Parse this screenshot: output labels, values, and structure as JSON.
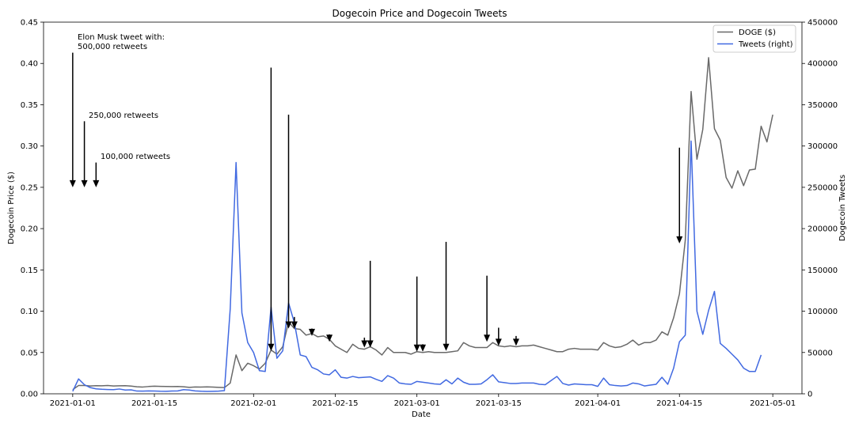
{
  "chart_data": {
    "type": "line",
    "title": "Dogecoin Price and Dogecoin Tweets",
    "xlabel": "Date",
    "ylabel_left": "Dogecoin Price ($)",
    "ylabel_right": "Dogecoin Tweets",
    "xlim": [
      "2020-12-27",
      "2021-05-06"
    ],
    "ylim_left": [
      0,
      0.45
    ],
    "ylim_right": [
      0,
      450000
    ],
    "x_ticks": [
      "2021-01-01",
      "2021-01-15",
      "2021-02-01",
      "2021-02-15",
      "2021-03-01",
      "2021-03-15",
      "2021-04-01",
      "2021-04-15",
      "2021-05-01"
    ],
    "y_ticks_left": [
      "0.00",
      "0.05",
      "0.10",
      "0.15",
      "0.20",
      "0.25",
      "0.30",
      "0.35",
      "0.40",
      "0.45"
    ],
    "y_ticks_right": [
      "0",
      "50000",
      "100000",
      "150000",
      "200000",
      "250000",
      "300000",
      "350000",
      "400000",
      "450000"
    ],
    "legend_position": "top-right",
    "grid": false,
    "series": [
      {
        "name": "DOGE ($)",
        "axis": "left",
        "color": "#696969",
        "points": [
          [
            "2021-01-01",
            0.005
          ],
          [
            "2021-01-02",
            0.01
          ],
          [
            "2021-01-03",
            0.01
          ],
          [
            "2021-01-04",
            0.0095
          ],
          [
            "2021-01-05",
            0.0098
          ],
          [
            "2021-01-06",
            0.0097
          ],
          [
            "2021-01-07",
            0.01
          ],
          [
            "2021-01-08",
            0.0095
          ],
          [
            "2021-01-09",
            0.0097
          ],
          [
            "2021-01-10",
            0.0098
          ],
          [
            "2021-01-11",
            0.0093
          ],
          [
            "2021-01-12",
            0.0085
          ],
          [
            "2021-01-13",
            0.0082
          ],
          [
            "2021-01-14",
            0.0088
          ],
          [
            "2021-01-15",
            0.0092
          ],
          [
            "2021-01-16",
            0.009
          ],
          [
            "2021-01-17",
            0.0088
          ],
          [
            "2021-01-18",
            0.0087
          ],
          [
            "2021-01-19",
            0.0088
          ],
          [
            "2021-01-20",
            0.0085
          ],
          [
            "2021-01-21",
            0.0078
          ],
          [
            "2021-01-22",
            0.0083
          ],
          [
            "2021-01-23",
            0.0082
          ],
          [
            "2021-01-24",
            0.0084
          ],
          [
            "2021-01-25",
            0.0082
          ],
          [
            "2021-01-26",
            0.0078
          ],
          [
            "2021-01-27",
            0.0075
          ],
          [
            "2021-01-28",
            0.013
          ],
          [
            "2021-01-29",
            0.047
          ],
          [
            "2021-01-30",
            0.028
          ],
          [
            "2021-01-31",
            0.037
          ],
          [
            "2021-02-01",
            0.034
          ],
          [
            "2021-02-02",
            0.03
          ],
          [
            "2021-02-03",
            0.037
          ],
          [
            "2021-02-04",
            0.053
          ],
          [
            "2021-02-05",
            0.048
          ],
          [
            "2021-02-06",
            0.057
          ],
          [
            "2021-02-07",
            0.087
          ],
          [
            "2021-02-08",
            0.079
          ],
          [
            "2021-02-09",
            0.078
          ],
          [
            "2021-02-10",
            0.071
          ],
          [
            "2021-02-11",
            0.073
          ],
          [
            "2021-02-12",
            0.069
          ],
          [
            "2021-02-13",
            0.07
          ],
          [
            "2021-02-14",
            0.066
          ],
          [
            "2021-02-15",
            0.058
          ],
          [
            "2021-02-16",
            0.054
          ],
          [
            "2021-02-17",
            0.05
          ],
          [
            "2021-02-18",
            0.06
          ],
          [
            "2021-02-19",
            0.055
          ],
          [
            "2021-02-20",
            0.054
          ],
          [
            "2021-02-21",
            0.057
          ],
          [
            "2021-02-22",
            0.053
          ],
          [
            "2021-02-23",
            0.047
          ],
          [
            "2021-02-24",
            0.056
          ],
          [
            "2021-02-25",
            0.05
          ],
          [
            "2021-02-26",
            0.05
          ],
          [
            "2021-02-27",
            0.05
          ],
          [
            "2021-02-28",
            0.048
          ],
          [
            "2021-03-01",
            0.051
          ],
          [
            "2021-03-02",
            0.05
          ],
          [
            "2021-03-03",
            0.051
          ],
          [
            "2021-03-04",
            0.05
          ],
          [
            "2021-03-05",
            0.05
          ],
          [
            "2021-03-06",
            0.05
          ],
          [
            "2021-03-07",
            0.051
          ],
          [
            "2021-03-08",
            0.052
          ],
          [
            "2021-03-09",
            0.062
          ],
          [
            "2021-03-10",
            0.058
          ],
          [
            "2021-03-11",
            0.056
          ],
          [
            "2021-03-12",
            0.056
          ],
          [
            "2021-03-13",
            0.056
          ],
          [
            "2021-03-14",
            0.062
          ],
          [
            "2021-03-15",
            0.058
          ],
          [
            "2021-03-16",
            0.057
          ],
          [
            "2021-03-17",
            0.058
          ],
          [
            "2021-03-18",
            0.057
          ],
          [
            "2021-03-19",
            0.058
          ],
          [
            "2021-03-20",
            0.058
          ],
          [
            "2021-03-21",
            0.059
          ],
          [
            "2021-03-22",
            0.057
          ],
          [
            "2021-03-23",
            0.055
          ],
          [
            "2021-03-24",
            0.053
          ],
          [
            "2021-03-25",
            0.051
          ],
          [
            "2021-03-26",
            0.051
          ],
          [
            "2021-03-27",
            0.054
          ],
          [
            "2021-03-28",
            0.055
          ],
          [
            "2021-03-29",
            0.054
          ],
          [
            "2021-03-30",
            0.054
          ],
          [
            "2021-03-31",
            0.054
          ],
          [
            "2021-04-01",
            0.053
          ],
          [
            "2021-04-02",
            0.062
          ],
          [
            "2021-04-03",
            0.058
          ],
          [
            "2021-04-04",
            0.056
          ],
          [
            "2021-04-05",
            0.057
          ],
          [
            "2021-04-06",
            0.06
          ],
          [
            "2021-04-07",
            0.065
          ],
          [
            "2021-04-08",
            0.059
          ],
          [
            "2021-04-09",
            0.062
          ],
          [
            "2021-04-10",
            0.062
          ],
          [
            "2021-04-11",
            0.065
          ],
          [
            "2021-04-12",
            0.075
          ],
          [
            "2021-04-13",
            0.071
          ],
          [
            "2021-04-14",
            0.092
          ],
          [
            "2021-04-15",
            0.121
          ],
          [
            "2021-04-16",
            0.186
          ],
          [
            "2021-04-17",
            0.366
          ],
          [
            "2021-04-18",
            0.284
          ],
          [
            "2021-04-19",
            0.32
          ],
          [
            "2021-04-20",
            0.407
          ],
          [
            "2021-04-21",
            0.321
          ],
          [
            "2021-04-22",
            0.307
          ],
          [
            "2021-04-23",
            0.262
          ],
          [
            "2021-04-24",
            0.249
          ],
          [
            "2021-04-25",
            0.27
          ],
          [
            "2021-04-26",
            0.252
          ],
          [
            "2021-04-27",
            0.271
          ],
          [
            "2021-04-28",
            0.272
          ],
          [
            "2021-04-29",
            0.324
          ],
          [
            "2021-04-30",
            0.305
          ],
          [
            "2021-05-01",
            0.338
          ]
        ]
      },
      {
        "name": "Tweets (right)",
        "axis": "right",
        "color": "#4169e1",
        "points": [
          [
            "2021-01-01",
            3000
          ],
          [
            "2021-01-02",
            18000
          ],
          [
            "2021-01-03",
            11000
          ],
          [
            "2021-01-04",
            7500
          ],
          [
            "2021-01-05",
            6000
          ],
          [
            "2021-01-06",
            5500
          ],
          [
            "2021-01-07",
            5200
          ],
          [
            "2021-01-08",
            5000
          ],
          [
            "2021-01-09",
            5800
          ],
          [
            "2021-01-10",
            4500
          ],
          [
            "2021-01-11",
            4800
          ],
          [
            "2021-01-12",
            3300
          ],
          [
            "2021-01-13",
            3200
          ],
          [
            "2021-01-14",
            3500
          ],
          [
            "2021-01-15",
            3400
          ],
          [
            "2021-01-16",
            3100
          ],
          [
            "2021-01-17",
            3000
          ],
          [
            "2021-01-18",
            3300
          ],
          [
            "2021-01-19",
            3500
          ],
          [
            "2021-01-20",
            5000
          ],
          [
            "2021-01-21",
            4600
          ],
          [
            "2021-01-22",
            3500
          ],
          [
            "2021-01-23",
            3100
          ],
          [
            "2021-01-24",
            2900
          ],
          [
            "2021-01-25",
            3000
          ],
          [
            "2021-01-26",
            3200
          ],
          [
            "2021-01-27",
            3800
          ],
          [
            "2021-01-28",
            103000
          ],
          [
            "2021-01-29",
            280000
          ],
          [
            "2021-01-30",
            98000
          ],
          [
            "2021-01-31",
            62000
          ],
          [
            "2021-02-01",
            50000
          ],
          [
            "2021-02-02",
            28000
          ],
          [
            "2021-02-03",
            27000
          ],
          [
            "2021-02-04",
            105000
          ],
          [
            "2021-02-05",
            43000
          ],
          [
            "2021-02-06",
            52000
          ],
          [
            "2021-02-07",
            110000
          ],
          [
            "2021-02-08",
            86000
          ],
          [
            "2021-02-09",
            47000
          ],
          [
            "2021-02-10",
            45000
          ],
          [
            "2021-02-11",
            32000
          ],
          [
            "2021-02-12",
            29000
          ],
          [
            "2021-02-13",
            24000
          ],
          [
            "2021-02-14",
            23000
          ],
          [
            "2021-02-15",
            29000
          ],
          [
            "2021-02-16",
            20000
          ],
          [
            "2021-02-17",
            19000
          ],
          [
            "2021-02-18",
            21000
          ],
          [
            "2021-02-19",
            19500
          ],
          [
            "2021-02-20",
            20000
          ],
          [
            "2021-02-21",
            20500
          ],
          [
            "2021-02-22",
            17500
          ],
          [
            "2021-02-23",
            15000
          ],
          [
            "2021-02-24",
            22000
          ],
          [
            "2021-02-25",
            19000
          ],
          [
            "2021-02-26",
            13000
          ],
          [
            "2021-02-27",
            12000
          ],
          [
            "2021-02-28",
            11500
          ],
          [
            "2021-03-01",
            15000
          ],
          [
            "2021-03-02",
            14000
          ],
          [
            "2021-03-03",
            13000
          ],
          [
            "2021-03-04",
            12000
          ],
          [
            "2021-03-05",
            11500
          ],
          [
            "2021-03-06",
            17000
          ],
          [
            "2021-03-07",
            12000
          ],
          [
            "2021-03-08",
            19000
          ],
          [
            "2021-03-09",
            14000
          ],
          [
            "2021-03-10",
            11500
          ],
          [
            "2021-03-11",
            11500
          ],
          [
            "2021-03-12",
            12000
          ],
          [
            "2021-03-13",
            17000
          ],
          [
            "2021-03-14",
            23000
          ],
          [
            "2021-03-15",
            14500
          ],
          [
            "2021-03-16",
            13500
          ],
          [
            "2021-03-17",
            12500
          ],
          [
            "2021-03-18",
            12500
          ],
          [
            "2021-03-19",
            13000
          ],
          [
            "2021-03-20",
            13000
          ],
          [
            "2021-03-21",
            13000
          ],
          [
            "2021-03-22",
            11500
          ],
          [
            "2021-03-23",
            11000
          ],
          [
            "2021-03-24",
            16000
          ],
          [
            "2021-03-25",
            21000
          ],
          [
            "2021-03-26",
            12500
          ],
          [
            "2021-03-27",
            10500
          ],
          [
            "2021-03-28",
            12000
          ],
          [
            "2021-03-29",
            11500
          ],
          [
            "2021-03-30",
            11000
          ],
          [
            "2021-03-31",
            11000
          ],
          [
            "2021-04-01",
            9000
          ],
          [
            "2021-04-02",
            19000
          ],
          [
            "2021-04-03",
            11000
          ],
          [
            "2021-04-04",
            10000
          ],
          [
            "2021-04-05",
            9500
          ],
          [
            "2021-04-06",
            10000
          ],
          [
            "2021-04-07",
            13000
          ],
          [
            "2021-04-08",
            12000
          ],
          [
            "2021-04-09",
            9500
          ],
          [
            "2021-04-10",
            10500
          ],
          [
            "2021-04-11",
            11500
          ],
          [
            "2021-04-12",
            20000
          ],
          [
            "2021-04-13",
            11500
          ],
          [
            "2021-04-14",
            31000
          ],
          [
            "2021-04-15",
            63000
          ],
          [
            "2021-04-16",
            71000
          ],
          [
            "2021-04-17",
            306000
          ],
          [
            "2021-04-18",
            100000
          ],
          [
            "2021-04-19",
            72000
          ],
          [
            "2021-04-20",
            101000
          ],
          [
            "2021-04-21",
            124000
          ],
          [
            "2021-04-22",
            61000
          ],
          [
            "2021-04-23",
            55000
          ],
          [
            "2021-04-24",
            48000
          ],
          [
            "2021-04-25",
            41000
          ],
          [
            "2021-04-26",
            31000
          ],
          [
            "2021-04-27",
            27000
          ],
          [
            "2021-04-28",
            27000
          ],
          [
            "2021-04-29",
            47000
          ]
        ]
      }
    ],
    "annotations": [
      {
        "text": "Elon Musk tweet with:\n500,000 retweets"
      },
      {
        "text": "250,000 retweets"
      },
      {
        "text": "100,000 retweets"
      }
    ],
    "tweet_arrows": [
      {
        "date": "2021-01-01",
        "retweets": 500000,
        "arrow_top": 0.413,
        "arrow_tip": 0.25
      },
      {
        "date": "2021-01-03",
        "retweets": 250000,
        "arrow_top": 0.33,
        "arrow_tip": 0.25
      },
      {
        "date": "2021-01-05",
        "retweets": 100000,
        "arrow_top": 0.28,
        "arrow_tip": 0.25
      },
      {
        "date": "2021-02-04",
        "arrow_top": 0.395,
        "arrow_tip": 0.052
      },
      {
        "date": "2021-02-07",
        "arrow_top": 0.338,
        "arrow_tip": 0.079
      },
      {
        "date": "2021-02-08",
        "arrow_top": 0.093,
        "arrow_tip": 0.079
      },
      {
        "date": "2021-02-11",
        "arrow_top": 0.079,
        "arrow_tip": 0.07
      },
      {
        "date": "2021-02-14",
        "arrow_top": 0.072,
        "arrow_tip": 0.063
      },
      {
        "date": "2021-02-20",
        "arrow_top": 0.068,
        "arrow_tip": 0.056
      },
      {
        "date": "2021-02-21",
        "arrow_top": 0.161,
        "arrow_tip": 0.056
      },
      {
        "date": "2021-03-01",
        "arrow_top": 0.142,
        "arrow_tip": 0.051
      },
      {
        "date": "2021-03-02",
        "arrow_top": 0.06,
        "arrow_tip": 0.051
      },
      {
        "date": "2021-03-06",
        "arrow_top": 0.184,
        "arrow_tip": 0.052
      },
      {
        "date": "2021-03-13",
        "arrow_top": 0.143,
        "arrow_tip": 0.063
      },
      {
        "date": "2021-03-15",
        "arrow_top": 0.08,
        "arrow_tip": 0.058
      },
      {
        "date": "2021-03-18",
        "arrow_top": 0.07,
        "arrow_tip": 0.058
      },
      {
        "date": "2021-04-15",
        "arrow_top": 0.298,
        "arrow_tip": 0.182
      }
    ]
  }
}
